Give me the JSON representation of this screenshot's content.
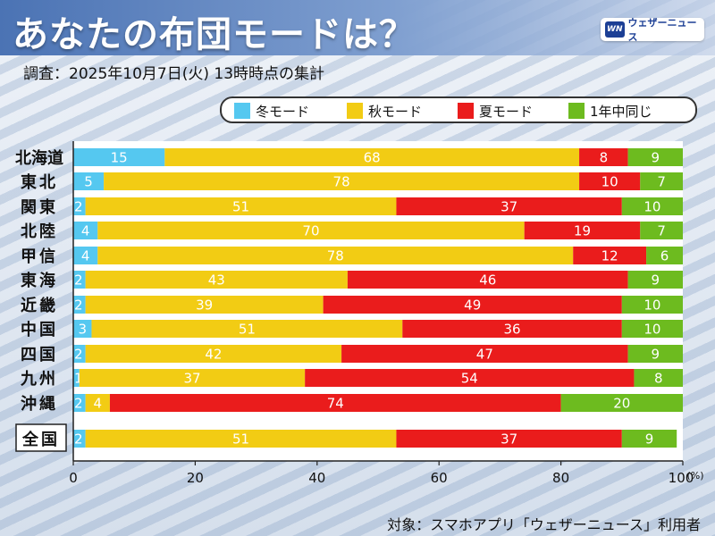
{
  "header": {
    "title": "あなたの布団モードは？",
    "logo_text": "ウェザーニュース",
    "logo_mark": "WN"
  },
  "subtitle": "調査：2025年10月7日(火) 13時時点の集計",
  "footnote": "対象：スマホアプリ「ウェザーニュース」利用者",
  "colors": {
    "winter": "#55c8f0",
    "autumn": "#f2cc14",
    "summer": "#ea1c1c",
    "same": "#6dbb1f"
  },
  "chart_data": {
    "type": "bar",
    "orientation": "horizontal",
    "stacked": true,
    "categories": [
      "北海道",
      "東北",
      "関東",
      "北陸",
      "甲信",
      "東海",
      "近畿",
      "中国",
      "四国",
      "九州",
      "沖縄",
      "全国"
    ],
    "series": [
      {
        "name": "冬モード",
        "key": "winter",
        "values": [
          15,
          5,
          2,
          4,
          4,
          2,
          2,
          3,
          2,
          1,
          2,
          2
        ]
      },
      {
        "name": "秋モード",
        "key": "autumn",
        "values": [
          68,
          78,
          51,
          70,
          78,
          43,
          39,
          51,
          42,
          37,
          4,
          51
        ]
      },
      {
        "name": "夏モード",
        "key": "summer",
        "values": [
          8,
          10,
          37,
          19,
          12,
          46,
          49,
          36,
          47,
          54,
          74,
          37
        ]
      },
      {
        "name": "1年中同じ",
        "key": "same",
        "values": [
          9,
          7,
          10,
          7,
          6,
          9,
          10,
          10,
          9,
          8,
          20,
          9
        ]
      }
    ],
    "xlim": [
      0,
      100
    ],
    "xticks": [
      "0",
      "20",
      "40",
      "60",
      "80",
      "100"
    ],
    "xunit": "(%)",
    "title": "あなたの布団モードは？"
  }
}
